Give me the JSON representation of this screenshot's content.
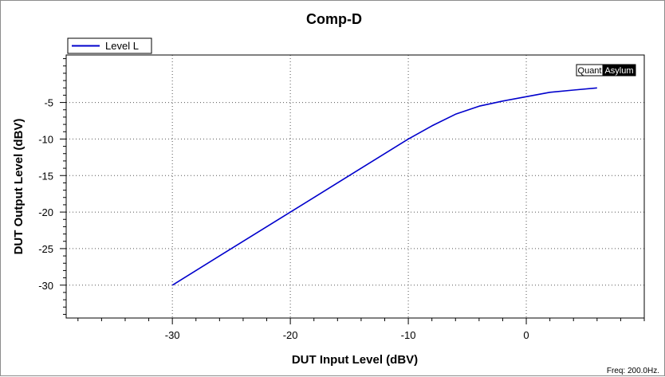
{
  "chart_data": {
    "type": "line",
    "title": "Comp-D",
    "xlabel": "DUT Input Level (dBV)",
    "ylabel": "DUT Output Level (dBV)",
    "xlim": [
      -39,
      10
    ],
    "ylim": [
      -34.5,
      1.5
    ],
    "x_ticks": [
      -30,
      -20,
      -10,
      0
    ],
    "y_ticks": [
      -5,
      -10,
      -15,
      -20,
      -25,
      -30
    ],
    "x_minor_step": 2,
    "y_minor_step": 1,
    "grid": true,
    "legend_position": "top-left",
    "series": [
      {
        "name": "Level L",
        "color": "#0000cc",
        "x": [
          -30,
          -26,
          -22,
          -18,
          -14,
          -10,
          -8,
          -6,
          -4,
          -2,
          0,
          2,
          4,
          6
        ],
        "y": [
          -30,
          -26,
          -22,
          -18,
          -14,
          -10,
          -8.2,
          -6.6,
          -5.5,
          -4.8,
          -4.2,
          -3.6,
          -3.3,
          -3.0
        ]
      }
    ]
  },
  "branding": {
    "left": "Quant",
    "right": "Asylum"
  },
  "footer": {
    "freq": "Freq: 200.0Hz."
  }
}
